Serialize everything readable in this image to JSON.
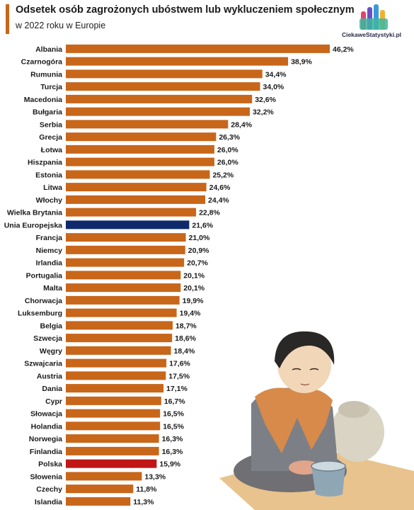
{
  "header": {
    "title": "Odsetek osób zagrożonych ubóstwem lub wykluczeniem społecznym",
    "subtitle": "w 2022 roku w Europie"
  },
  "logo": {
    "text": "CiekaweStatystyki.pl"
  },
  "colors": {
    "bar": "#c8661a",
    "eu": "#0f2a6b",
    "poland": "#c01616",
    "label": "#1a1a1a"
  },
  "chart_data": {
    "type": "bar",
    "orientation": "horizontal",
    "title": "Odsetek osób zagrożonych ubóstwem lub wykluczeniem społecznym",
    "subtitle": "w 2022 roku w Europie",
    "xlim": [
      0,
      50
    ],
    "grid": false,
    "categories": [
      "Albania",
      "Czarnogóra",
      "Rumunia",
      "Turcja",
      "Macedonia",
      "Bułgaria",
      "Serbia",
      "Grecja",
      "Łotwa",
      "Hiszpania",
      "Estonia",
      "Litwa",
      "Włochy",
      "Wielka Brytania",
      "Unia Europejska",
      "Francja",
      "Niemcy",
      "Irlandia",
      "Portugalia",
      "Malta",
      "Chorwacja",
      "Luksemburg",
      "Belgia",
      "Szwecja",
      "Węgry",
      "Szwajcaria",
      "Austria",
      "Dania",
      "Cypr",
      "Słowacja",
      "Holandia",
      "Norwegia",
      "Finlandia",
      "Polska",
      "Słowenia",
      "Czechy",
      "Islandia"
    ],
    "values": [
      46.2,
      38.9,
      34.4,
      34.0,
      32.6,
      32.2,
      28.4,
      26.3,
      26.0,
      26.0,
      25.2,
      24.6,
      24.4,
      22.8,
      21.6,
      21.0,
      20.9,
      20.7,
      20.1,
      20.1,
      19.9,
      19.4,
      18.7,
      18.6,
      18.4,
      17.6,
      17.5,
      17.1,
      16.7,
      16.5,
      16.5,
      16.3,
      16.3,
      15.9,
      13.3,
      11.8,
      11.3
    ],
    "value_labels": [
      "46,2%",
      "38,9%",
      "34,4%",
      "34,0%",
      "32,6%",
      "32,2%",
      "28,4%",
      "26,3%",
      "26,0%",
      "26,0%",
      "25,2%",
      "24,6%",
      "24,4%",
      "22,8%",
      "21,6%",
      "21,0%",
      "20,9%",
      "20,7%",
      "20,1%",
      "20,1%",
      "19,9%",
      "19,4%",
      "18,7%",
      "18,6%",
      "18,4%",
      "17,6%",
      "17,5%",
      "17,1%",
      "16,7%",
      "16,5%",
      "16,5%",
      "16,3%",
      "16,3%",
      "15,9%",
      "13,3%",
      "11,8%",
      "11,3%"
    ],
    "highlights": {
      "Unia Europejska": "eu",
      "Polska": "poland"
    }
  }
}
